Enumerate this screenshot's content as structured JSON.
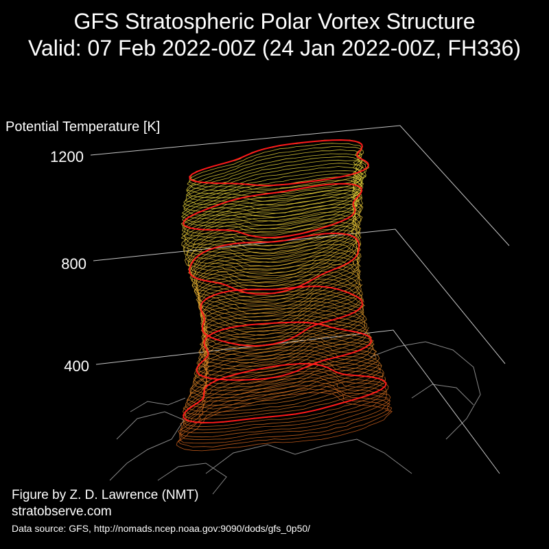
{
  "header": {
    "title_line1": "GFS Stratospheric Polar Vortex Structure",
    "title_line2": "Valid: 07 Feb 2022-00Z  (24 Jan 2022-00Z, FH336)"
  },
  "axis": {
    "label": "Potential Temperature [K]",
    "ticks": [
      "1200",
      "800",
      "400"
    ]
  },
  "credits": {
    "line1": "Figure by Z. D. Lawrence (NMT)",
    "line2": "stratobserve.com",
    "line3": "Data source: GFS, http://nomads.ncep.noaa.gov:9090/dods/gfs_0p50/"
  },
  "colors": {
    "background": "#000000",
    "vortex_low": "#d9661e",
    "vortex_high": "#f0dc3c",
    "highlight": "#ff1a1a",
    "axis_lines": "#c8c8c8",
    "coastline": "#8a8a8a"
  }
}
